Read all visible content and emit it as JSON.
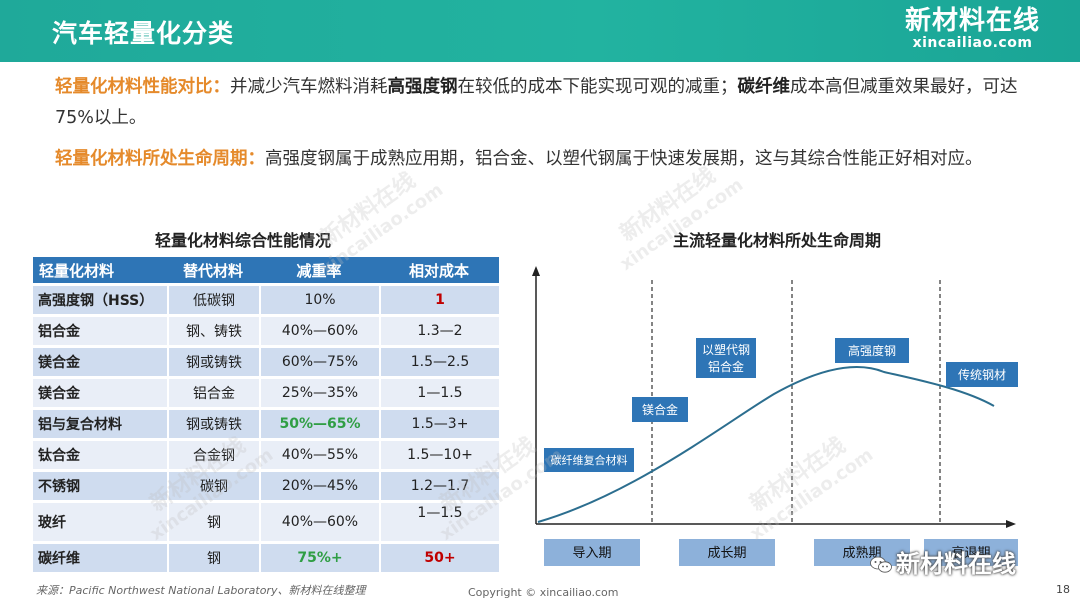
{
  "header": {
    "title": "汽车轻量化分类",
    "logo_cn": "新材料在线",
    "logo_en": "xincailiao.com"
  },
  "paragraph1": {
    "lead": "轻量化材料性能对比：",
    "t1": "并减少汽车燃料消耗",
    "b1": "高强度钢",
    "t2": "在较低的成本下能实现可观的减重；",
    "b2": "碳纤维",
    "t3": "成本高但减重效果最好，可达75%以上。"
  },
  "paragraph2": {
    "lead": "轻量化材料所处生命周期：",
    "t1": "高强度钢属于成熟应用期，铝合金、以塑代钢属于快速发展期，这与其综合性能正好相对应。"
  },
  "table": {
    "caption": "轻量化材料综合性能情况",
    "headers": [
      "轻量化材料",
      "替代材料",
      "减重率",
      "相对成本"
    ],
    "rows": [
      {
        "name": "高强度钢（HSS）",
        "sub": "低碳钢",
        "rate": "10%",
        "cost": "1"
      },
      {
        "name": "铝合金",
        "sub": "钢、铸铁",
        "rate": "40%—60%",
        "cost": "1.3—2"
      },
      {
        "name": "镁合金",
        "sub": "钢或铸铁",
        "rate": "60%—75%",
        "cost": "1.5—2.5"
      },
      {
        "name": "镁合金",
        "sub": "铝合金",
        "rate": "25%—35%",
        "cost": "1—1.5"
      },
      {
        "name": "铝与复合材料",
        "sub": "钢或铸铁",
        "rate": "50%—65%",
        "cost": "1.5—3+"
      },
      {
        "name": "钛合金",
        "sub": "合金钢",
        "rate": "40%—55%",
        "cost": "1.5—10+"
      },
      {
        "name": "不锈钢",
        "sub": "碳钢",
        "rate": "20%—45%",
        "cost": "1.2—1.7"
      },
      {
        "name": "玻纤",
        "sub": "钢",
        "rate": "40%—60%",
        "cost": "1—1.5"
      },
      {
        "name": "碳纤维",
        "sub": "钢",
        "rate": "75%+",
        "cost": "50+"
      }
    ],
    "highlight_red": "#c00000",
    "highlight_green": "#2f9e44"
  },
  "lifecycle": {
    "caption": "主流轻量化材料所处生命周期",
    "stages": [
      "导入期",
      "成长期",
      "成熟期",
      "衰退期"
    ],
    "materials": [
      "碳纤维复合材料",
      "镁合金",
      "以塑代钢",
      "铝合金",
      "高强度钢",
      "传统钢材"
    ],
    "colors": {
      "box": "#2e75b6",
      "stage": "#8db1da",
      "curve": "#2c6e8f"
    }
  },
  "footer": {
    "source": "来源：Pacific Northwest National Laboratory、新材料在线整理",
    "copyright": "Copyright © xincailiao.com",
    "page": "18",
    "wechat": "新材料在线"
  },
  "watermark": {
    "cn": "新材料在线",
    "en": "xincailiao.com"
  }
}
